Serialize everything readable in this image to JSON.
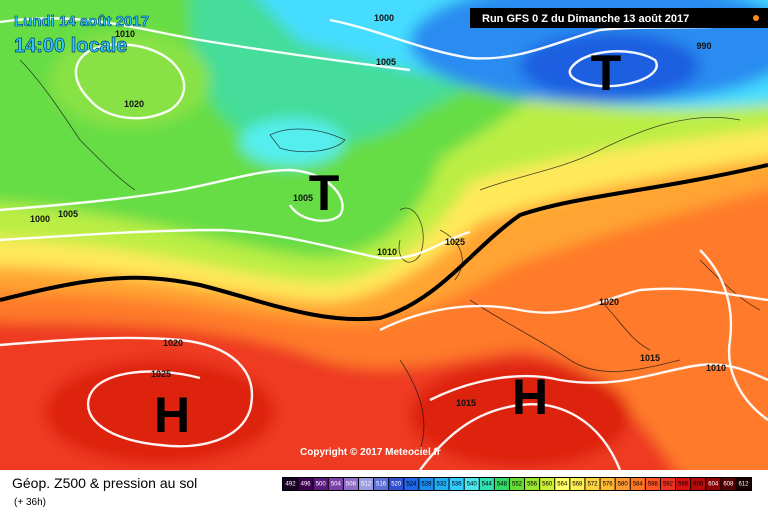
{
  "header": {
    "date": "Lundi 14 août 2017",
    "time": "14:00 locale"
  },
  "run_info": "Run GFS 0 Z du Dimanche 13 août 2017",
  "pressure_labels": [
    "1000",
    "1010",
    "1020",
    "1005",
    "990",
    "1005",
    "1000",
    "1005",
    "1010",
    "1025",
    "1020",
    "1015",
    "1010",
    "1020",
    "1025",
    "1015"
  ],
  "systems": [
    "T",
    "T",
    "H",
    "H"
  ],
  "copyright": "Copyright © 2017 Meteociel.fr",
  "legend": {
    "title": "Géop. Z500 & pression au sol",
    "lead": "(+ 36h)",
    "scale": [
      492,
      496,
      500,
      504,
      508,
      512,
      516,
      520,
      524,
      528,
      532,
      536,
      540,
      544,
      548,
      552,
      556,
      560,
      564,
      568,
      572,
      576,
      580,
      584,
      588,
      592,
      596,
      600,
      604,
      608,
      612
    ],
    "colors": [
      "#1a0022",
      "#3d0052",
      "#5c1a80",
      "#7a3fa8",
      "#8f6cc7",
      "#9c9ce0",
      "#5b6fd6",
      "#2f4fd0",
      "#1e66e6",
      "#1a8cf0",
      "#22b0f5",
      "#33ccff",
      "#4de6ee",
      "#33e0b0",
      "#33d966",
      "#66dd33",
      "#99e633",
      "#ccee33",
      "#ffff66",
      "#ffee55",
      "#ffd23f",
      "#ffbb33",
      "#ff9933",
      "#ff7722",
      "#ff5522",
      "#ee3322",
      "#dd1111",
      "#bb0a0a",
      "#880505",
      "#550000",
      "#1a0000"
    ]
  }
}
